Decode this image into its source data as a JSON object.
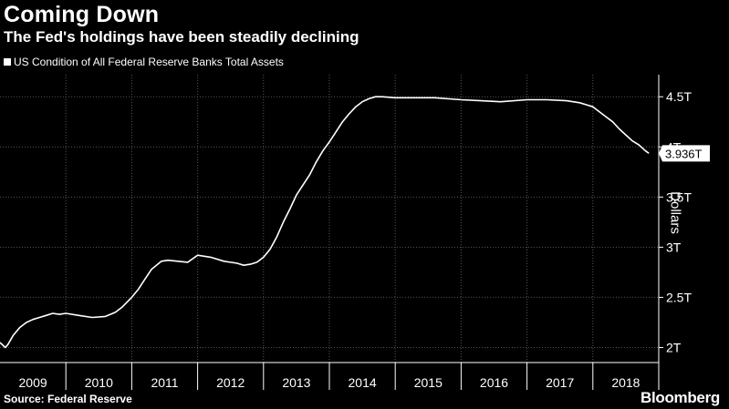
{
  "header": {
    "title": "Coming Down",
    "subtitle": "The Fed's holdings have been steadily declining"
  },
  "footer": {
    "source": "Source: Federal Reserve",
    "brand": "Bloomberg"
  },
  "colors": {
    "background": "#000000",
    "line": "#ffffff",
    "grid": "#555555"
  },
  "chart_data": {
    "type": "line",
    "title": "Coming Down",
    "subtitle": "The Fed's holdings have been steadily declining",
    "xlabel": "",
    "ylabel": "Dollars",
    "legend_placement": "top-left",
    "grid": true,
    "xlim": [
      2009.0,
      2019.0
    ],
    "ylim": [
      1.85,
      4.72
    ],
    "x_ticks": [
      "2009",
      "2010",
      "2011",
      "2012",
      "2013",
      "2014",
      "2015",
      "2016",
      "2017",
      "2018"
    ],
    "y_ticks": [
      {
        "value": 2.0,
        "label": "2T"
      },
      {
        "value": 2.5,
        "label": "2.5T"
      },
      {
        "value": 3.0,
        "label": "3T"
      },
      {
        "value": 3.5,
        "label": "3.5T"
      },
      {
        "value": 4.0,
        "label": "4T"
      },
      {
        "value": 4.5,
        "label": "4.5T"
      }
    ],
    "last_value_label": "3.936T",
    "series": [
      {
        "name": "US Condition of All Federal Reserve Banks Total Assets",
        "x": [
          2009.0,
          2009.08,
          2009.12,
          2009.2,
          2009.3,
          2009.4,
          2009.5,
          2009.6,
          2009.7,
          2009.8,
          2009.9,
          2010.0,
          2010.2,
          2010.4,
          2010.6,
          2010.75,
          2010.85,
          2011.0,
          2011.1,
          2011.2,
          2011.3,
          2011.45,
          2011.55,
          2011.7,
          2011.85,
          2012.0,
          2012.2,
          2012.4,
          2012.6,
          2012.7,
          2012.8,
          2012.9,
          2013.0,
          2013.1,
          2013.2,
          2013.3,
          2013.4,
          2013.5,
          2013.6,
          2013.7,
          2013.8,
          2013.9,
          2014.0,
          2014.1,
          2014.2,
          2014.3,
          2014.4,
          2014.5,
          2014.6,
          2014.7,
          2014.8,
          2015.0,
          2015.3,
          2015.6,
          2016.0,
          2016.3,
          2016.6,
          2017.0,
          2017.3,
          2017.6,
          2017.8,
          2017.9,
          2018.0,
          2018.1,
          2018.2,
          2018.3,
          2018.4,
          2018.5,
          2018.6,
          2018.7,
          2018.8,
          2018.85
        ],
        "values": [
          2.05,
          2.0,
          2.03,
          2.12,
          2.2,
          2.25,
          2.28,
          2.3,
          2.32,
          2.34,
          2.33,
          2.34,
          2.32,
          2.3,
          2.31,
          2.35,
          2.4,
          2.5,
          2.58,
          2.68,
          2.78,
          2.86,
          2.87,
          2.86,
          2.85,
          2.92,
          2.9,
          2.86,
          2.84,
          2.82,
          2.83,
          2.85,
          2.9,
          2.98,
          3.1,
          3.25,
          3.38,
          3.52,
          3.62,
          3.72,
          3.85,
          3.96,
          4.05,
          4.15,
          4.25,
          4.33,
          4.4,
          4.45,
          4.48,
          4.5,
          4.5,
          4.49,
          4.49,
          4.49,
          4.47,
          4.46,
          4.45,
          4.47,
          4.47,
          4.46,
          4.44,
          4.42,
          4.4,
          4.35,
          4.3,
          4.25,
          4.18,
          4.12,
          4.06,
          4.02,
          3.96,
          3.936
        ]
      }
    ]
  }
}
